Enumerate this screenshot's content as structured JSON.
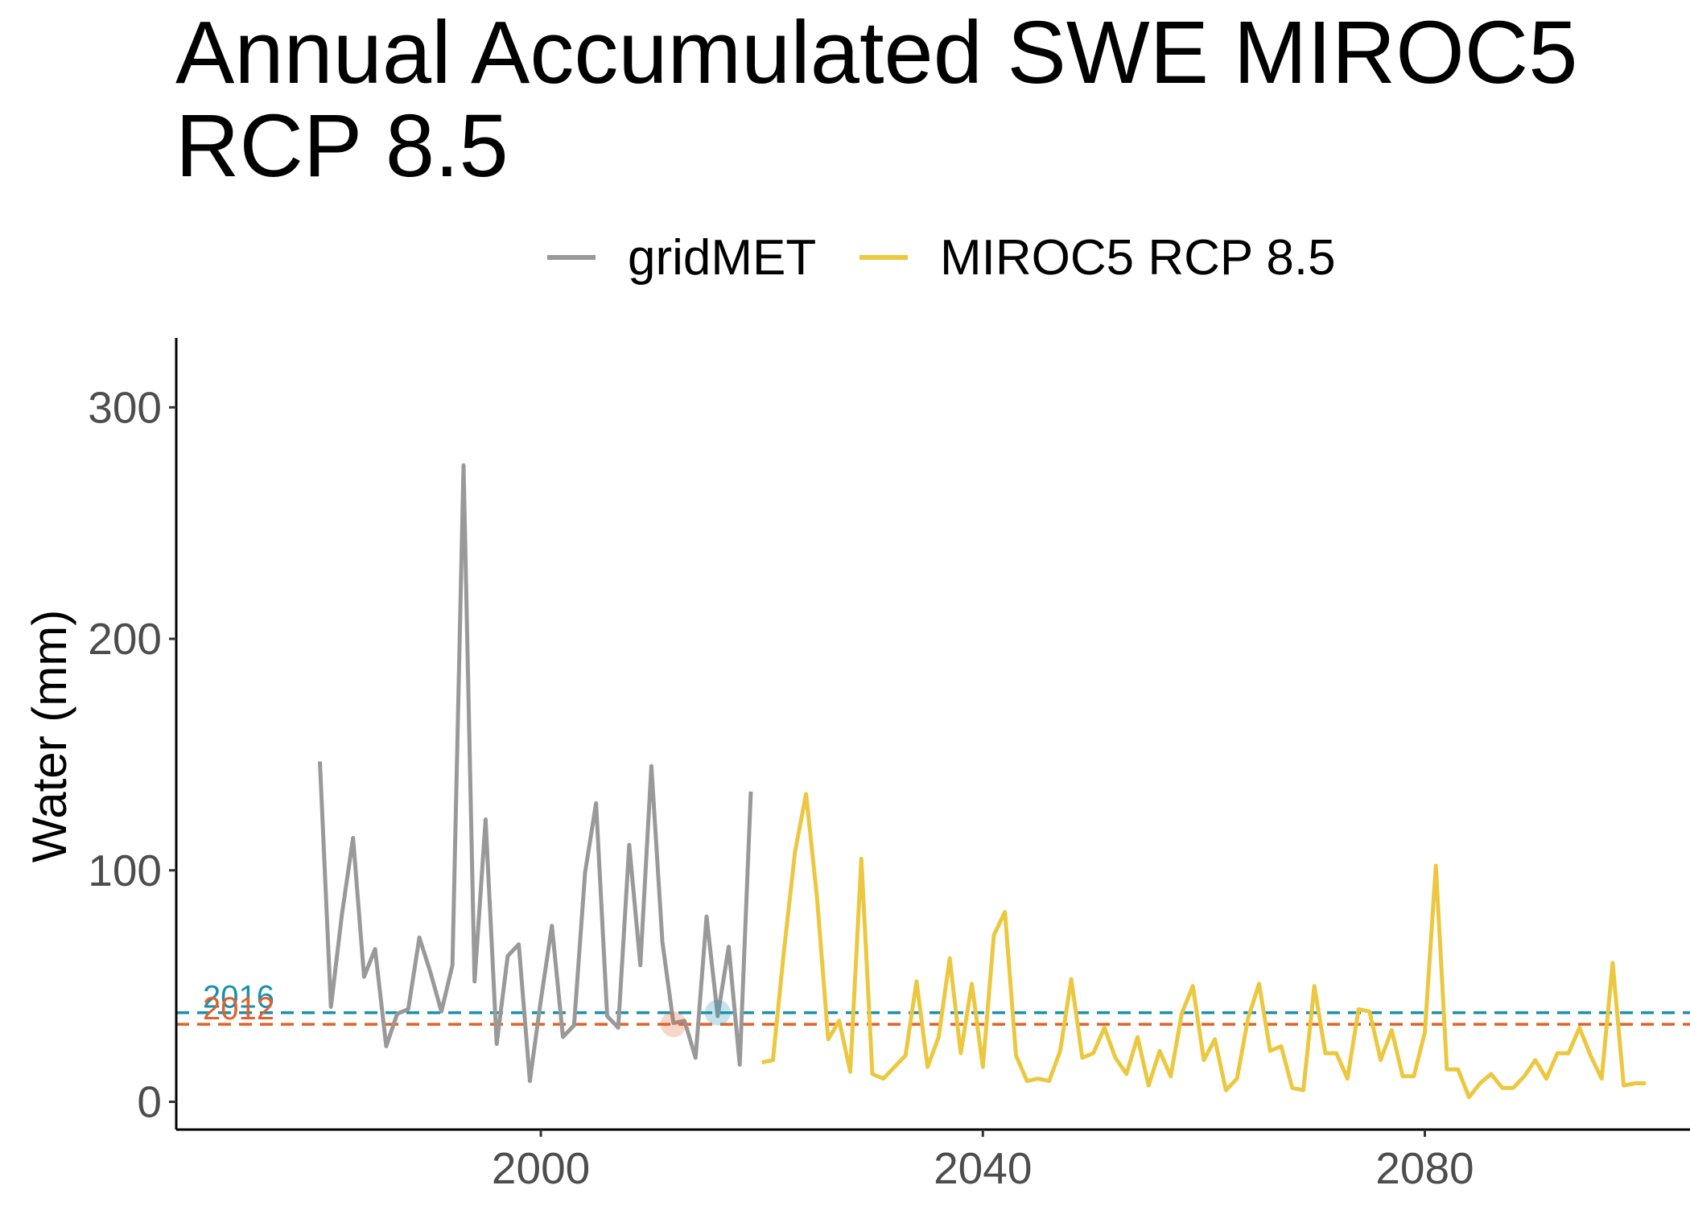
{
  "chart_data": {
    "type": "line",
    "title": "Annual Accumulated SWE MIROC5 RCP 8.5",
    "xlabel": "",
    "ylabel": "Water (mm)",
    "xlim": [
      1967,
      2104
    ],
    "ylim": [
      -12,
      330
    ],
    "x_ticks": [
      2000,
      2040,
      2080
    ],
    "y_ticks": [
      0,
      100,
      200,
      300
    ],
    "grid": false,
    "legend_position": "top",
    "series": [
      {
        "name": "gridMET",
        "color": "#999999",
        "x": [
          1980,
          1981,
          1982,
          1983,
          1984,
          1985,
          1986,
          1987,
          1988,
          1989,
          1990,
          1991,
          1992,
          1993,
          1994,
          1995,
          1996,
          1997,
          1998,
          1999,
          2000,
          2001,
          2002,
          2003,
          2004,
          2005,
          2006,
          2007,
          2008,
          2009,
          2010,
          2011,
          2012,
          2013,
          2014,
          2015,
          2016,
          2017,
          2018,
          2019
        ],
        "values": [
          147,
          41,
          81,
          114,
          54,
          66,
          24,
          38,
          40,
          71,
          56,
          39,
          59,
          275,
          52,
          122,
          25,
          63,
          68,
          9,
          44,
          76,
          28,
          33,
          99,
          129,
          37,
          32,
          111,
          59,
          145,
          69,
          34,
          35,
          19,
          80,
          37,
          67,
          16,
          134
        ]
      },
      {
        "name": "MIROC5 RCP 8.5",
        "color": "#EBC83F",
        "x": [
          2020,
          2021,
          2022,
          2023,
          2024,
          2025,
          2026,
          2027,
          2028,
          2029,
          2030,
          2031,
          2032,
          2033,
          2034,
          2035,
          2036,
          2037,
          2038,
          2039,
          2040,
          2041,
          2042,
          2043,
          2044,
          2045,
          2046,
          2047,
          2048,
          2049,
          2050,
          2051,
          2052,
          2053,
          2054,
          2055,
          2056,
          2057,
          2058,
          2059,
          2060,
          2061,
          2062,
          2063,
          2064,
          2065,
          2066,
          2067,
          2068,
          2069,
          2070,
          2071,
          2072,
          2073,
          2074,
          2075,
          2076,
          2077,
          2078,
          2079,
          2080,
          2081,
          2082,
          2083,
          2084,
          2085,
          2086,
          2087,
          2088,
          2089,
          2090,
          2091,
          2092,
          2093,
          2094,
          2095,
          2096,
          2097,
          2098,
          2099,
          2100
        ],
        "values": [
          17,
          18,
          65,
          108,
          133,
          88,
          27,
          35,
          13,
          105,
          12,
          10,
          15,
          20,
          52,
          15,
          28,
          62,
          21,
          51,
          15,
          72,
          82,
          20,
          9,
          10,
          9,
          22,
          53,
          19,
          21,
          32,
          19,
          12,
          28,
          7,
          22,
          11,
          38,
          50,
          18,
          27,
          5,
          10,
          36,
          51,
          22,
          24,
          6,
          5,
          50,
          21,
          21,
          10,
          40,
          39,
          18,
          31,
          11,
          11,
          30,
          102,
          14,
          14,
          2,
          8,
          12,
          6,
          6,
          11,
          18,
          10,
          21,
          21,
          32,
          20,
          10,
          60,
          7,
          8,
          8
        ]
      }
    ],
    "reference_lines": [
      {
        "label": "2016",
        "value": 38.5,
        "color": "#1A8FAE",
        "marker_x": 2016
      },
      {
        "label": "2012",
        "value": 33.5,
        "color": "#E0612B",
        "marker_x": 2012
      }
    ]
  }
}
